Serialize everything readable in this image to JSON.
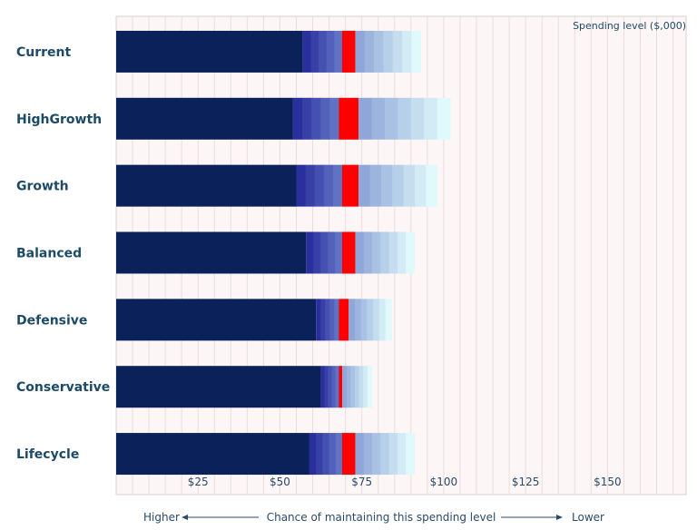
{
  "chart_data": {
    "type": "bar",
    "orientation": "horizontal",
    "stacked": true,
    "annotation": "Spending level ($,000)",
    "categories": [
      "Current",
      "HighGrowth",
      "Growth",
      "Balanced",
      "Defensive",
      "Conservative",
      "Lifecycle"
    ],
    "bars": [
      {
        "name": "Current",
        "dark_end": 57,
        "red_start": 69,
        "red_end": 73,
        "max": 93
      },
      {
        "name": "HighGrowth",
        "dark_end": 54,
        "red_start": 68,
        "red_end": 74,
        "max": 102
      },
      {
        "name": "Growth",
        "dark_end": 55,
        "red_start": 69,
        "red_end": 74,
        "max": 98
      },
      {
        "name": "Balanced",
        "dark_end": 58,
        "red_start": 69,
        "red_end": 73,
        "max": 91
      },
      {
        "name": "Defensive",
        "dark_end": 61,
        "red_start": 68,
        "red_end": 71,
        "max": 84
      },
      {
        "name": "Conservative",
        "dark_end": 62.5,
        "red_start": 68,
        "red_end": 69,
        "max": 78
      },
      {
        "name": "Lifecycle",
        "dark_end": 59,
        "red_start": 69,
        "red_end": 73,
        "max": 91
      }
    ],
    "xlim": [
      0,
      174
    ],
    "xticks": [
      25,
      50,
      75,
      100,
      125,
      150
    ],
    "xtick_labels": [
      "$25",
      "$50",
      "$75",
      "$100",
      "$125",
      "$150"
    ],
    "grid": true,
    "xlabel": {
      "left": "Higher",
      "center": "Chance of maintaining this spending level",
      "right": "Lower"
    },
    "colors": {
      "dark": "#0a2159",
      "mid_start": "#2a2f9e",
      "mid_end": "#6072c4",
      "red": "#ff0000",
      "light_start": "#8ea6d8",
      "light_end": "#e0f9fb",
      "background": "#fdf6f6",
      "grid": "#eadcdc"
    }
  }
}
